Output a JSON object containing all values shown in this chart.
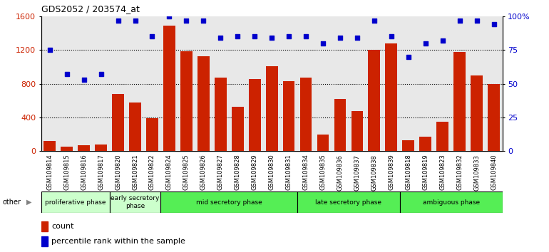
{
  "title": "GDS2052 / 203574_at",
  "samples": [
    "GSM109814",
    "GSM109815",
    "GSM109816",
    "GSM109817",
    "GSM109820",
    "GSM109821",
    "GSM109822",
    "GSM109824",
    "GSM109825",
    "GSM109826",
    "GSM109827",
    "GSM109828",
    "GSM109829",
    "GSM109830",
    "GSM109831",
    "GSM109834",
    "GSM109835",
    "GSM109836",
    "GSM109837",
    "GSM109838",
    "GSM109839",
    "GSM109818",
    "GSM109819",
    "GSM109823",
    "GSM109832",
    "GSM109833",
    "GSM109840"
  ],
  "counts": [
    120,
    55,
    75,
    80,
    680,
    580,
    395,
    1490,
    1190,
    1130,
    870,
    530,
    860,
    1010,
    830,
    870,
    200,
    620,
    480,
    1200,
    1280,
    130,
    170,
    350,
    1180,
    900,
    800
  ],
  "percentiles": [
    75,
    57,
    53,
    57,
    97,
    97,
    85,
    100,
    97,
    97,
    84,
    85,
    85,
    84,
    85,
    85,
    80,
    84,
    84,
    97,
    85,
    70,
    80,
    82,
    97,
    97,
    94
  ],
  "phases_info": [
    {
      "label": "proliferative phase",
      "start": 0,
      "end": 4,
      "color": "#ccffcc"
    },
    {
      "label": "early secretory\nphase",
      "start": 4,
      "end": 7,
      "color": "#ccffcc"
    },
    {
      "label": "mid secretory phase",
      "start": 7,
      "end": 15,
      "color": "#55ee55"
    },
    {
      "label": "late secretory phase",
      "start": 15,
      "end": 21,
      "color": "#55ee55"
    },
    {
      "label": "ambiguous phase",
      "start": 21,
      "end": 27,
      "color": "#55ee55"
    }
  ],
  "bar_color": "#cc2200",
  "dot_color": "#0000cc",
  "ylim_left": [
    0,
    1600
  ],
  "ylim_right": [
    0,
    100
  ],
  "yticks_left": [
    0,
    400,
    800,
    1200,
    1600
  ],
  "yticks_right": [
    0,
    25,
    50,
    75,
    100
  ],
  "plot_bg": "#e8e8e8",
  "xtick_bg": "#cccccc"
}
